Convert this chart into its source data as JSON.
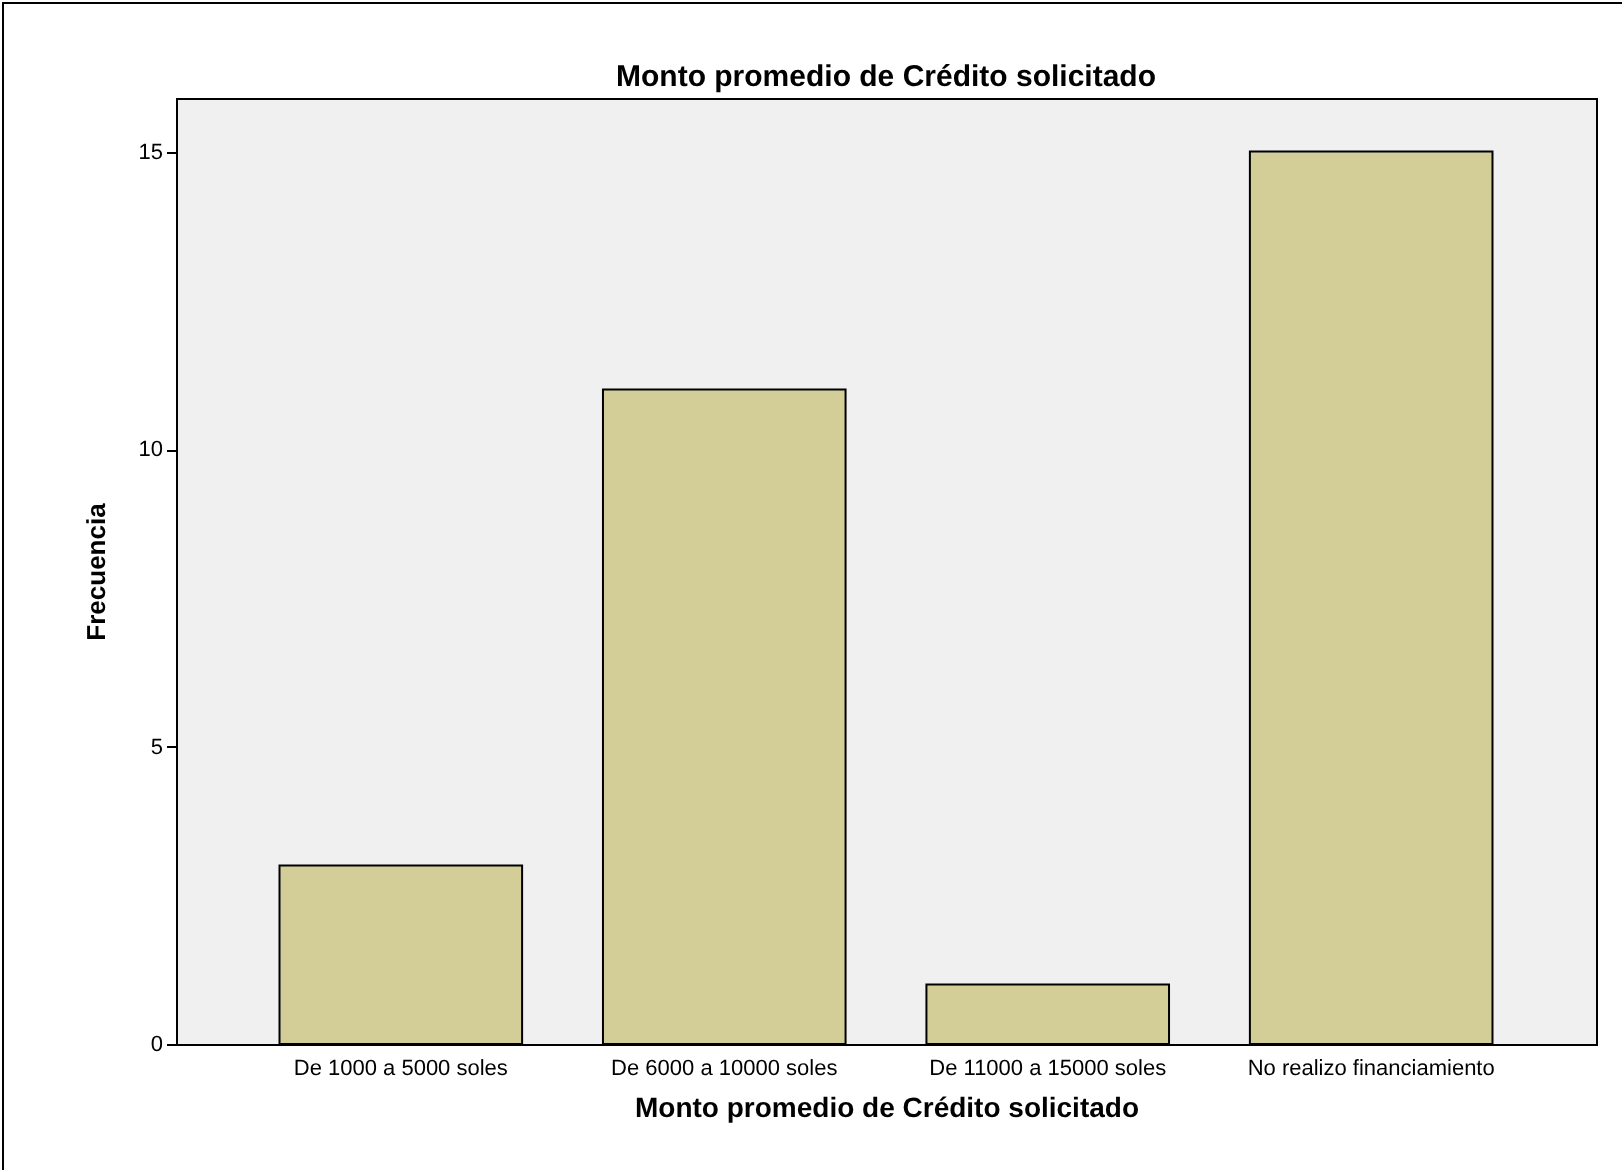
{
  "chart_data": {
    "type": "bar",
    "title": "Monto promedio de Crédito solicitado",
    "xlabel": "Monto promedio de Crédito solicitado",
    "ylabel": "Frecuencia",
    "categories": [
      "De 1000 a 5000 soles",
      "De 6000 a 10000 soles",
      "De 11000 a 15000 soles",
      "No realizo financiamiento"
    ],
    "values": [
      3,
      11,
      1,
      15
    ],
    "color": "#d3ce97",
    "ylim": [
      0,
      15.9
    ],
    "yticks": [
      0,
      5,
      10,
      15
    ],
    "grid": false
  }
}
